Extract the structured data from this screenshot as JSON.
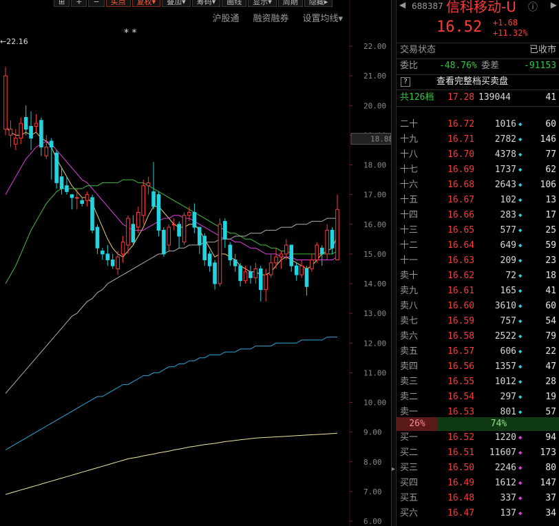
{
  "toolbar": {
    "buttons": [
      {
        "label": "⊞",
        "hot": false
      },
      {
        "label": "+",
        "hot": false
      },
      {
        "label": "−",
        "hot": false
      },
      {
        "label": "买点",
        "hot": true
      },
      {
        "label": "复权▾",
        "hot": true
      },
      {
        "label": "叠加▾",
        "hot": false
      },
      {
        "label": "筹码▾",
        "hot": false
      },
      {
        "label": "画线",
        "hot": false
      },
      {
        "label": "显示▾",
        "hot": false
      },
      {
        "label": "周期",
        "hot": false
      },
      {
        "label": "隐藏▸",
        "hot": false
      }
    ],
    "sub": [
      "沪股通",
      "融资融券",
      "设置均线▾"
    ]
  },
  "chart": {
    "marker_label": "←22.16",
    "stars": "* *",
    "current_price_label": "18.88",
    "chart_data": {
      "type": "candlestick",
      "y_ticks": [
        "22.00",
        "21.00",
        "20.00",
        "19.00",
        "18.00",
        "17.00",
        "16.00",
        "15.00",
        "14.00",
        "13.00",
        "12.00",
        "11.00",
        "10.00",
        "9.00",
        "8.00",
        "7.00",
        "6.00"
      ],
      "ylim": [
        6.0,
        22.3
      ],
      "candles": [
        {
          "o": 19.2,
          "c": 21.0,
          "h": 21.3,
          "l": 19.0
        },
        {
          "o": 19.0,
          "c": 19.2,
          "h": 19.5,
          "l": 18.6
        },
        {
          "o": 18.7,
          "c": 18.9,
          "h": 19.2,
          "l": 18.5
        },
        {
          "o": 18.9,
          "c": 19.4,
          "h": 19.6,
          "l": 18.7
        },
        {
          "o": 19.6,
          "c": 19.2,
          "h": 20.0,
          "l": 19.0
        },
        {
          "o": 19.3,
          "c": 18.9,
          "h": 19.8,
          "l": 18.5
        },
        {
          "o": 19.3,
          "c": 19.4,
          "h": 19.7,
          "l": 19.1
        },
        {
          "o": 19.5,
          "c": 18.6,
          "h": 19.6,
          "l": 18.3
        },
        {
          "o": 18.3,
          "c": 18.6,
          "h": 19.0,
          "l": 18.2
        },
        {
          "o": 18.8,
          "c": 18.6,
          "h": 18.9,
          "l": 17.5
        },
        {
          "o": 18.4,
          "c": 17.4,
          "h": 18.5,
          "l": 17.2
        },
        {
          "o": 17.6,
          "c": 17.2,
          "h": 17.9,
          "l": 17.0
        },
        {
          "o": 17.3,
          "c": 17.1,
          "h": 17.6,
          "l": 17.0
        },
        {
          "o": 17.0,
          "c": 16.9,
          "h": 17.0,
          "l": 16.5
        },
        {
          "o": 16.9,
          "c": 16.9,
          "h": 17.2,
          "l": 16.5
        },
        {
          "o": 16.8,
          "c": 16.7,
          "h": 16.9,
          "l": 16.6
        },
        {
          "o": 16.8,
          "c": 17.0,
          "h": 17.1,
          "l": 16.6
        },
        {
          "o": 16.9,
          "c": 15.8,
          "h": 17.0,
          "l": 15.7
        },
        {
          "o": 15.9,
          "c": 15.2,
          "h": 16.0,
          "l": 15.0
        },
        {
          "o": 15.1,
          "c": 15.0,
          "h": 15.2,
          "l": 14.8
        },
        {
          "o": 15.0,
          "c": 14.8,
          "h": 15.3,
          "l": 14.6
        },
        {
          "o": 14.8,
          "c": 14.6,
          "h": 15.0,
          "l": 14.5
        },
        {
          "o": 14.5,
          "c": 14.9,
          "h": 15.1,
          "l": 14.3
        },
        {
          "o": 15.0,
          "c": 15.4,
          "h": 15.6,
          "l": 14.7
        },
        {
          "o": 15.3,
          "c": 16.2,
          "h": 16.3,
          "l": 15.0
        },
        {
          "o": 16.0,
          "c": 15.4,
          "h": 16.3,
          "l": 15.3
        },
        {
          "o": 15.9,
          "c": 16.4,
          "h": 16.6,
          "l": 15.7
        },
        {
          "o": 16.3,
          "c": 17.3,
          "h": 17.5,
          "l": 16.0
        },
        {
          "o": 17.3,
          "c": 17.4,
          "h": 17.6,
          "l": 17.0
        },
        {
          "o": 17.1,
          "c": 16.6,
          "h": 18.1,
          "l": 16.5
        },
        {
          "o": 17.0,
          "c": 15.8,
          "h": 17.1,
          "l": 15.6
        },
        {
          "o": 15.8,
          "c": 15.0,
          "h": 15.9,
          "l": 14.9
        },
        {
          "o": 15.3,
          "c": 15.9,
          "h": 16.0,
          "l": 15.1
        },
        {
          "o": 16.0,
          "c": 16.0,
          "h": 16.2,
          "l": 15.8
        },
        {
          "o": 16.0,
          "c": 15.6,
          "h": 16.1,
          "l": 15.2
        },
        {
          "o": 15.4,
          "c": 16.3,
          "h": 16.4,
          "l": 15.3
        },
        {
          "o": 16.3,
          "c": 16.4,
          "h": 16.6,
          "l": 16.1
        },
        {
          "o": 16.4,
          "c": 15.9,
          "h": 16.7,
          "l": 15.7
        },
        {
          "o": 15.9,
          "c": 15.3,
          "h": 15.9,
          "l": 15.0
        },
        {
          "o": 15.6,
          "c": 14.8,
          "h": 15.7,
          "l": 14.6
        },
        {
          "o": 15.0,
          "c": 14.6,
          "h": 15.1,
          "l": 14.4
        },
        {
          "o": 14.7,
          "c": 14.0,
          "h": 14.8,
          "l": 13.8
        },
        {
          "o": 14.0,
          "c": 16.0,
          "h": 16.2,
          "l": 13.9
        },
        {
          "o": 16.1,
          "c": 15.5,
          "h": 16.2,
          "l": 15.2
        },
        {
          "o": 15.3,
          "c": 14.8,
          "h": 15.4,
          "l": 14.6
        },
        {
          "o": 14.8,
          "c": 14.6,
          "h": 15.0,
          "l": 14.4
        },
        {
          "o": 14.6,
          "c": 14.1,
          "h": 14.7,
          "l": 13.9
        },
        {
          "o": 14.1,
          "c": 14.4,
          "h": 14.6,
          "l": 14.0
        },
        {
          "o": 14.4,
          "c": 14.2,
          "h": 14.6,
          "l": 14.0
        },
        {
          "o": 14.2,
          "c": 14.5,
          "h": 14.7,
          "l": 14.0
        },
        {
          "o": 14.5,
          "c": 13.8,
          "h": 14.6,
          "l": 13.4
        },
        {
          "o": 13.8,
          "c": 14.3,
          "h": 14.5,
          "l": 13.4
        },
        {
          "o": 14.3,
          "c": 14.7,
          "h": 15.0,
          "l": 14.2
        },
        {
          "o": 14.7,
          "c": 14.9,
          "h": 15.2,
          "l": 14.5
        },
        {
          "o": 14.9,
          "c": 15.0,
          "h": 15.1,
          "l": 14.5
        },
        {
          "o": 15.0,
          "c": 15.3,
          "h": 15.5,
          "l": 14.8
        },
        {
          "o": 15.3,
          "c": 14.6,
          "h": 15.3,
          "l": 14.4
        },
        {
          "o": 14.6,
          "c": 14.3,
          "h": 14.7,
          "l": 14.1
        },
        {
          "o": 14.3,
          "c": 14.6,
          "h": 14.8,
          "l": 14.2
        },
        {
          "o": 14.5,
          "c": 13.9,
          "h": 14.6,
          "l": 13.6
        },
        {
          "o": 14.5,
          "c": 14.8,
          "h": 15.0,
          "l": 14.4
        },
        {
          "o": 14.8,
          "c": 15.3,
          "h": 15.4,
          "l": 14.7
        },
        {
          "o": 15.2,
          "c": 15.0,
          "h": 15.3,
          "l": 14.6
        },
        {
          "o": 15.0,
          "c": 15.8,
          "h": 16.0,
          "l": 14.8
        },
        {
          "o": 15.8,
          "c": 15.2,
          "h": 15.9,
          "l": 15.0
        },
        {
          "o": 14.8,
          "c": 16.5,
          "h": 17.0,
          "l": 14.8
        }
      ],
      "ma_lines": [
        {
          "color": "#e8d070",
          "values": [
            19.3,
            19.1,
            19.0,
            19.0,
            19.1,
            19.0,
            19.1,
            18.9,
            18.8,
            18.6,
            18.2,
            17.9,
            17.6,
            17.3,
            17.1,
            16.9,
            16.9,
            16.7,
            16.3,
            15.9,
            15.5,
            15.2,
            15.0,
            14.9,
            15.1,
            15.3,
            15.6,
            15.9,
            16.3,
            16.6,
            16.6,
            16.4,
            16.2,
            16.0,
            15.9,
            15.9,
            16.0,
            16.0,
            15.8,
            15.5,
            15.2,
            14.9,
            15.0,
            15.0,
            14.9,
            14.8,
            14.6,
            14.5,
            14.4,
            14.4,
            14.3,
            14.3,
            14.4,
            14.6,
            14.8,
            14.9,
            14.8,
            14.7,
            14.6,
            14.5,
            14.6,
            14.8,
            15.0,
            15.1,
            15.2,
            15.6
          ]
        },
        {
          "color": "#e040e0",
          "values": [
            17.0,
            17.3,
            17.6,
            17.9,
            18.2,
            18.4,
            18.6,
            18.7,
            18.8,
            18.7,
            18.5,
            18.3,
            18.1,
            17.9,
            17.7,
            17.5,
            17.4,
            17.2,
            17.0,
            16.8,
            16.6,
            16.4,
            16.2,
            16.0,
            15.9,
            15.8,
            15.8,
            15.8,
            15.9,
            16.0,
            16.1,
            16.2,
            16.2,
            16.3,
            16.3,
            16.2,
            16.2,
            16.1,
            16.0,
            15.9,
            15.8,
            15.7,
            15.6,
            15.5,
            15.5,
            15.4,
            15.4,
            15.3,
            15.2,
            15.2,
            15.1,
            15.0,
            15.0,
            15.0,
            14.9,
            14.9,
            14.9,
            14.8,
            14.8,
            14.8,
            14.8,
            14.8,
            14.8,
            14.8,
            14.8,
            14.9
          ]
        },
        {
          "color": "#40c040",
          "values": [
            14.0,
            14.3,
            14.6,
            15.0,
            15.4,
            15.8,
            16.1,
            16.4,
            16.7,
            16.9,
            17.1,
            17.2,
            17.2,
            17.2,
            17.2,
            17.2,
            17.3,
            17.3,
            17.3,
            17.4,
            17.4,
            17.4,
            17.4,
            17.5,
            17.5,
            17.5,
            17.4,
            17.4,
            17.3,
            17.2,
            17.1,
            17.0,
            16.9,
            16.8,
            16.7,
            16.6,
            16.5,
            16.4,
            16.3,
            16.2,
            16.1,
            16.0,
            15.9,
            15.8,
            15.7,
            15.7,
            15.6,
            15.5,
            15.5,
            15.4,
            15.3,
            15.3,
            15.2,
            15.2,
            15.1,
            15.1,
            15.0,
            15.0,
            15.0,
            15.0,
            15.0,
            15.0,
            15.0,
            15.0,
            15.0,
            15.1
          ]
        },
        {
          "color": "#b0b0b0",
          "values": [
            10.3,
            10.5,
            10.7,
            10.9,
            11.1,
            11.3,
            11.5,
            11.7,
            11.9,
            12.1,
            12.3,
            12.5,
            12.7,
            12.9,
            13.0,
            13.2,
            13.4,
            13.5,
            13.7,
            13.8,
            14.0,
            14.1,
            14.2,
            14.3,
            14.4,
            14.5,
            14.6,
            14.7,
            14.8,
            14.9,
            15.0,
            15.0,
            15.1,
            15.1,
            15.2,
            15.2,
            15.3,
            15.3,
            15.3,
            15.4,
            15.4,
            15.4,
            15.5,
            15.5,
            15.5,
            15.6,
            15.6,
            15.6,
            15.7,
            15.7,
            15.7,
            15.8,
            15.8,
            15.8,
            15.9,
            15.9,
            15.9,
            16.0,
            16.0,
            16.0,
            16.1,
            16.1,
            16.1,
            16.2,
            16.2,
            16.2
          ]
        },
        {
          "color": "#2fa8d8",
          "values": [
            8.4,
            8.5,
            8.6,
            8.7,
            8.8,
            8.9,
            9.0,
            9.1,
            9.2,
            9.3,
            9.4,
            9.5,
            9.6,
            9.7,
            9.8,
            9.9,
            10.0,
            10.1,
            10.2,
            10.2,
            10.3,
            10.4,
            10.5,
            10.6,
            10.6,
            10.7,
            10.8,
            10.9,
            10.9,
            11.0,
            11.0,
            11.1,
            11.2,
            11.2,
            11.3,
            11.3,
            11.4,
            11.4,
            11.5,
            11.5,
            11.6,
            11.6,
            11.6,
            11.7,
            11.7,
            11.7,
            11.8,
            11.8,
            11.8,
            11.9,
            11.9,
            11.9,
            11.9,
            12.0,
            12.0,
            12.0,
            12.0,
            12.0,
            12.1,
            12.1,
            12.1,
            12.1,
            12.1,
            12.2,
            12.2,
            12.2
          ]
        },
        {
          "color": "#f0e8a0",
          "values": [
            6.9,
            6.95,
            7.0,
            7.05,
            7.1,
            7.15,
            7.2,
            7.25,
            7.3,
            7.35,
            7.4,
            7.45,
            7.5,
            7.55,
            7.6,
            7.65,
            7.7,
            7.75,
            7.8,
            7.85,
            7.9,
            7.95,
            8.0,
            8.05,
            8.1,
            8.13,
            8.16,
            8.2,
            8.23,
            8.26,
            8.3,
            8.33,
            8.36,
            8.4,
            8.43,
            8.46,
            8.5,
            8.52,
            8.55,
            8.58,
            8.6,
            8.62,
            8.65,
            8.68,
            8.7,
            8.72,
            8.74,
            8.76,
            8.78,
            8.8,
            8.81,
            8.82,
            8.83,
            8.84,
            8.85,
            8.86,
            8.87,
            8.88,
            8.89,
            8.9,
            8.91,
            8.92,
            8.93,
            8.94,
            8.95,
            8.96
          ]
        }
      ]
    }
  },
  "panel": {
    "back": "◀",
    "code": "688387",
    "name": "信科移动-U",
    "info": "ⓘ",
    "chevron": "▶",
    "price": "16.52",
    "change": "+1.68",
    "change_pct": "+11.32%",
    "status_label": "交易状态",
    "status_value": "已收市",
    "weibi_label": "委比",
    "weibi_value": "-48.76%",
    "weicha_label": "委差",
    "weicha_value": "-91153",
    "full_book_q": "?",
    "full_book_label": "查看完整档买卖盘",
    "total_label": "共126档",
    "total_price": "17.28",
    "total_vol": "139044",
    "total_cnt": "41",
    "asks": [
      {
        "label": "二十",
        "price": "16.72",
        "vol": "1016",
        "cnt": "60"
      },
      {
        "label": "十九",
        "price": "16.71",
        "vol": "2782",
        "cnt": "146"
      },
      {
        "label": "十八",
        "price": "16.70",
        "vol": "4378",
        "cnt": "77"
      },
      {
        "label": "十七",
        "price": "16.69",
        "vol": "1737",
        "cnt": "62"
      },
      {
        "label": "十六",
        "price": "16.68",
        "vol": "2643",
        "cnt": "106"
      },
      {
        "label": "十五",
        "price": "16.67",
        "vol": "102",
        "cnt": "13"
      },
      {
        "label": "十四",
        "price": "16.66",
        "vol": "283",
        "cnt": "17"
      },
      {
        "label": "十三",
        "price": "16.65",
        "vol": "577",
        "cnt": "25"
      },
      {
        "label": "十二",
        "price": "16.64",
        "vol": "649",
        "cnt": "59"
      },
      {
        "label": "十一",
        "price": "16.63",
        "vol": "209",
        "cnt": "23"
      },
      {
        "label": "卖十",
        "price": "16.62",
        "vol": "72",
        "cnt": "18"
      },
      {
        "label": "卖九",
        "price": "16.61",
        "vol": "165",
        "cnt": "41"
      },
      {
        "label": "卖八",
        "price": "16.60",
        "vol": "3610",
        "cnt": "60"
      },
      {
        "label": "卖七",
        "price": "16.59",
        "vol": "757",
        "cnt": "54"
      },
      {
        "label": "卖六",
        "price": "16.58",
        "vol": "2522",
        "cnt": "79"
      },
      {
        "label": "卖五",
        "price": "16.57",
        "vol": "606",
        "cnt": "22"
      },
      {
        "label": "卖四",
        "price": "16.56",
        "vol": "1357",
        "cnt": "47"
      },
      {
        "label": "卖三",
        "price": "16.55",
        "vol": "1012",
        "cnt": "28"
      },
      {
        "label": "卖二",
        "price": "16.54",
        "vol": "297",
        "cnt": "19"
      },
      {
        "label": "卖一",
        "price": "16.53",
        "vol": "801",
        "cnt": "57"
      }
    ],
    "ratio_sell": "26%",
    "ratio_buy": "74%",
    "bids": [
      {
        "label": "买一",
        "price": "16.52",
        "vol": "1220",
        "cnt": "94"
      },
      {
        "label": "买二",
        "price": "16.51",
        "vol": "11607",
        "cnt": "173"
      },
      {
        "label": "买三",
        "price": "16.50",
        "vol": "2246",
        "cnt": "80"
      },
      {
        "label": "买四",
        "price": "16.49",
        "vol": "1612",
        "cnt": "147"
      },
      {
        "label": "买五",
        "price": "16.48",
        "vol": "337",
        "cnt": "37"
      },
      {
        "label": "买六",
        "price": "16.47",
        "vol": "137",
        "cnt": "34"
      }
    ]
  }
}
